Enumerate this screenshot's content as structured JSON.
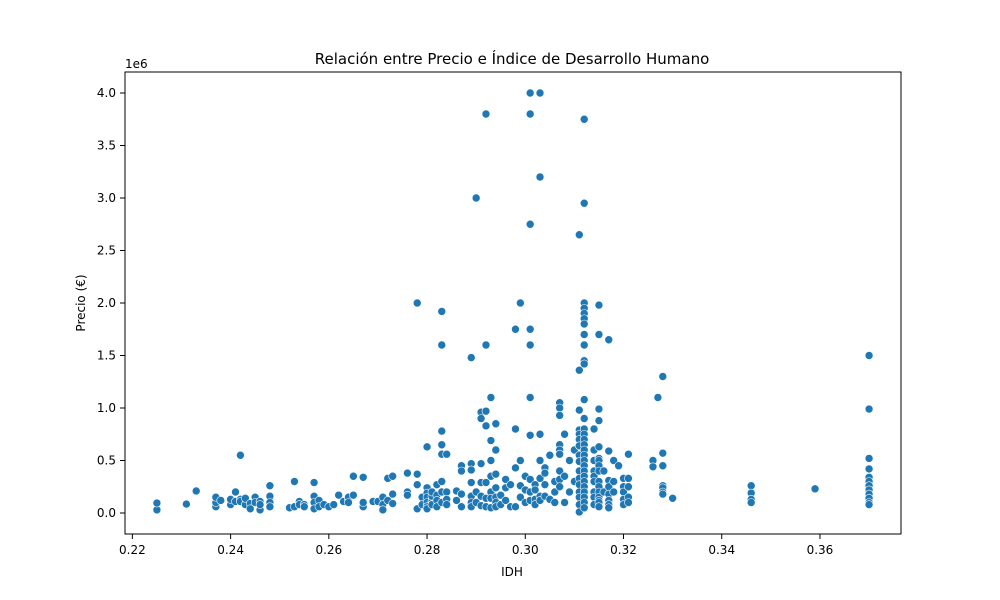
{
  "chart_data": {
    "type": "scatter",
    "title": "Relación entre Precio e Índice de Desarrollo Humano",
    "xlabel": "IDH",
    "ylabel": "Precio (€)",
    "y_offset_label": "1e6",
    "xlim": [
      0.2185,
      0.3765
    ],
    "ylim": [
      -200000,
      4200000
    ],
    "x_ticks": [
      0.22,
      0.24,
      0.26,
      0.28,
      0.3,
      0.32,
      0.34,
      0.36
    ],
    "x_tick_labels": [
      "0.22",
      "0.24",
      "0.26",
      "0.28",
      "0.30",
      "0.32",
      "0.34",
      "0.36"
    ],
    "y_ticks": [
      0,
      500000,
      1000000,
      1500000,
      2000000,
      2500000,
      3000000,
      3500000,
      4000000
    ],
    "y_tick_labels": [
      "0.0",
      "0.5",
      "1.0",
      "1.5",
      "2.0",
      "2.5",
      "3.0",
      "3.5",
      "4.0"
    ],
    "grid": false,
    "marker_color": "#1f77b4",
    "marker_edge_color": "#ffffff",
    "x": [
      0.225,
      0.225,
      0.231,
      0.233,
      0.237,
      0.237,
      0.237,
      0.238,
      0.24,
      0.24,
      0.241,
      0.241,
      0.242,
      0.242,
      0.242,
      0.243,
      0.243,
      0.244,
      0.244,
      0.245,
      0.245,
      0.246,
      0.246,
      0.246,
      0.248,
      0.248,
      0.248,
      0.248,
      0.252,
      0.253,
      0.253,
      0.254,
      0.254,
      0.255,
      0.255,
      0.257,
      0.257,
      0.257,
      0.257,
      0.258,
      0.258,
      0.259,
      0.26,
      0.261,
      0.262,
      0.263,
      0.264,
      0.264,
      0.264,
      0.265,
      0.265,
      0.267,
      0.267,
      0.267,
      0.269,
      0.27,
      0.271,
      0.271,
      0.271,
      0.272,
      0.272,
      0.273,
      0.273,
      0.273,
      0.276,
      0.276,
      0.276,
      0.278,
      0.278,
      0.278,
      0.278,
      0.279,
      0.279,
      0.28,
      0.28,
      0.28,
      0.28,
      0.28,
      0.28,
      0.28,
      0.281,
      0.281,
      0.281,
      0.281,
      0.282,
      0.282,
      0.282,
      0.282,
      0.283,
      0.283,
      0.283,
      0.283,
      0.283,
      0.283,
      0.283,
      0.283,
      0.284,
      0.284,
      0.284,
      0.284,
      0.286,
      0.286,
      0.287,
      0.287,
      0.287,
      0.287,
      0.289,
      0.289,
      0.289,
      0.289,
      0.289,
      0.289,
      0.289,
      0.29,
      0.29,
      0.29,
      0.291,
      0.291,
      0.291,
      0.291,
      0.291,
      0.291,
      0.292,
      0.292,
      0.292,
      0.292,
      0.292,
      0.292,
      0.292,
      0.293,
      0.293,
      0.293,
      0.293,
      0.293,
      0.293,
      0.293,
      0.294,
      0.294,
      0.294,
      0.294,
      0.294,
      0.294,
      0.294,
      0.295,
      0.295,
      0.296,
      0.296,
      0.296,
      0.297,
      0.297,
      0.298,
      0.298,
      0.298,
      0.298,
      0.299,
      0.299,
      0.299,
      0.299,
      0.3,
      0.3,
      0.3,
      0.301,
      0.301,
      0.301,
      0.301,
      0.301,
      0.301,
      0.301,
      0.301,
      0.301,
      0.301,
      0.302,
      0.302,
      0.302,
      0.302,
      0.303,
      0.303,
      0.303,
      0.303,
      0.303,
      0.303,
      0.303,
      0.304,
      0.304,
      0.304,
      0.304,
      0.305,
      0.305,
      0.306,
      0.306,
      0.306,
      0.307,
      0.307,
      0.307,
      0.307,
      0.307,
      0.307,
      0.307,
      0.307,
      0.307,
      0.308,
      0.308,
      0.308,
      0.309,
      0.309,
      0.31,
      0.31,
      0.311,
      0.311,
      0.311,
      0.311,
      0.311,
      0.311,
      0.311,
      0.311,
      0.311,
      0.311,
      0.311,
      0.311,
      0.311,
      0.311,
      0.311,
      0.311,
      0.312,
      0.312,
      0.312,
      0.312,
      0.312,
      0.312,
      0.312,
      0.312,
      0.312,
      0.312,
      0.312,
      0.312,
      0.312,
      0.312,
      0.312,
      0.312,
      0.312,
      0.312,
      0.312,
      0.312,
      0.312,
      0.312,
      0.312,
      0.312,
      0.312,
      0.312,
      0.312,
      0.312,
      0.312,
      0.314,
      0.314,
      0.314,
      0.314,
      0.314,
      0.314,
      0.314,
      0.314,
      0.314,
      0.315,
      0.315,
      0.315,
      0.315,
      0.315,
      0.315,
      0.315,
      0.315,
      0.315,
      0.315,
      0.315,
      0.315,
      0.315,
      0.315,
      0.315,
      0.315,
      0.316,
      0.316,
      0.317,
      0.317,
      0.317,
      0.317,
      0.317,
      0.317,
      0.317,
      0.317,
      0.318,
      0.318,
      0.318,
      0.319,
      0.32,
      0.32,
      0.32,
      0.32,
      0.32,
      0.321,
      0.321,
      0.321,
      0.321,
      0.321,
      0.326,
      0.326,
      0.327,
      0.328,
      0.328,
      0.328,
      0.328,
      0.328,
      0.328,
      0.328,
      0.33,
      0.346,
      0.346,
      0.346,
      0.346,
      0.359,
      0.37,
      0.37,
      0.37,
      0.37,
      0.37,
      0.37,
      0.37,
      0.37,
      0.37,
      0.37,
      0.37,
      0.37
    ],
    "y": [
      30000,
      95000,
      85000,
      210000,
      60000,
      100000,
      150000,
      120000,
      80000,
      130000,
      200000,
      110000,
      550000,
      130000,
      110000,
      80000,
      140000,
      90000,
      40000,
      150000,
      100000,
      110000,
      30000,
      80000,
      260000,
      160000,
      100000,
      60000,
      50000,
      300000,
      60000,
      110000,
      80000,
      80000,
      60000,
      290000,
      160000,
      100000,
      40000,
      120000,
      60000,
      80000,
      60000,
      80000,
      170000,
      110000,
      130000,
      150000,
      100000,
      350000,
      170000,
      340000,
      60000,
      100000,
      110000,
      110000,
      150000,
      80000,
      30000,
      120000,
      330000,
      350000,
      180000,
      90000,
      380000,
      200000,
      170000,
      2000000,
      370000,
      270000,
      40000,
      150000,
      80000,
      630000,
      240000,
      190000,
      150000,
      100000,
      60000,
      40000,
      110000,
      160000,
      200000,
      80000,
      270000,
      170000,
      120000,
      60000,
      1920000,
      1600000,
      780000,
      650000,
      560000,
      300000,
      200000,
      100000,
      560000,
      200000,
      130000,
      80000,
      210000,
      120000,
      450000,
      400000,
      180000,
      60000,
      1480000,
      470000,
      410000,
      290000,
      160000,
      100000,
      60000,
      3000000,
      200000,
      100000,
      960000,
      900000,
      470000,
      290000,
      160000,
      70000,
      3800000,
      1600000,
      970000,
      830000,
      290000,
      140000,
      60000,
      1100000,
      690000,
      500000,
      350000,
      200000,
      140000,
      50000,
      850000,
      600000,
      370000,
      240000,
      150000,
      100000,
      60000,
      170000,
      80000,
      320000,
      240000,
      120000,
      270000,
      60000,
      1750000,
      800000,
      430000,
      60000,
      2000000,
      500000,
      260000,
      150000,
      350000,
      220000,
      100000,
      4000000,
      3800000,
      2750000,
      1750000,
      1600000,
      1100000,
      740000,
      320000,
      200000,
      120000,
      270000,
      220000,
      130000,
      80000,
      4000000,
      3200000,
      750000,
      500000,
      330000,
      160000,
      120000,
      430000,
      380000,
      270000,
      160000,
      550000,
      130000,
      300000,
      200000,
      100000,
      1050000,
      1000000,
      930000,
      650000,
      600000,
      560000,
      400000,
      320000,
      250000,
      750000,
      350000,
      100000,
      500000,
      200000,
      600000,
      300000,
      2650000,
      1360000,
      980000,
      790000,
      750000,
      700000,
      640000,
      550000,
      490000,
      400000,
      330000,
      270000,
      200000,
      150000,
      80000,
      10000,
      3750000,
      2950000,
      2000000,
      1950000,
      1900000,
      1850000,
      1800000,
      1700000,
      1600000,
      1450000,
      1420000,
      1080000,
      900000,
      800000,
      750000,
      700000,
      650000,
      600000,
      550000,
      500000,
      450000,
      400000,
      350000,
      300000,
      250000,
      200000,
      150000,
      100000,
      50000,
      800000,
      600000,
      500000,
      400000,
      350000,
      300000,
      200000,
      150000,
      80000,
      1980000,
      1700000,
      990000,
      880000,
      630000,
      520000,
      500000,
      450000,
      400000,
      300000,
      250000,
      200000,
      150000,
      120000,
      100000,
      60000,
      400000,
      200000,
      1650000,
      590000,
      310000,
      250000,
      180000,
      120000,
      80000,
      50000,
      500000,
      300000,
      200000,
      450000,
      330000,
      250000,
      200000,
      130000,
      80000,
      560000,
      330000,
      250000,
      150000,
      100000,
      500000,
      440000,
      1100000,
      1300000,
      570000,
      450000,
      260000,
      240000,
      200000,
      180000,
      140000,
      260000,
      190000,
      130000,
      100000,
      230000,
      1500000,
      990000,
      520000,
      420000,
      340000,
      300000,
      260000,
      220000,
      180000,
      140000,
      100000,
      80000
    ]
  }
}
